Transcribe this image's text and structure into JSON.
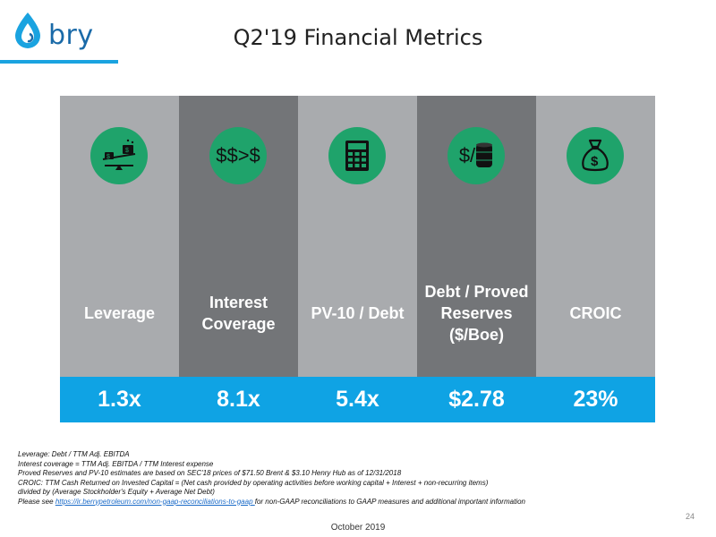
{
  "brand": {
    "name": "bry",
    "accent": "#1aa3e0",
    "logo_color": "#1a6aa8"
  },
  "title": "Q2'19 Financial Metrics",
  "metrics": [
    {
      "label": "Leverage",
      "value": "1.3x",
      "icon": "scale-balance-icon",
      "icon_text": ""
    },
    {
      "label": "Interest Coverage",
      "value": "8.1x",
      "icon": "dollar-comparison-icon",
      "icon_text": "$$>$"
    },
    {
      "label": "PV-10 / Debt",
      "value": "5.4x",
      "icon": "calculator-icon",
      "icon_text": ""
    },
    {
      "label": "Debt / Proved Reserves ($/Boe)",
      "value": "$2.78",
      "icon": "dollar-per-barrel-icon",
      "icon_text": "$/"
    },
    {
      "label": "CROIC",
      "value": "23%",
      "icon": "money-bag-icon",
      "icon_text": ""
    }
  ],
  "colors": {
    "light_col": "#a9abae",
    "dark_col": "#737578",
    "value_bar": "#0fa3e4",
    "icon_circle": "#1fa36b"
  },
  "notes": {
    "leverage": "Leverage:  Debt / TTM Adj. EBITDA",
    "interest": "Interest coverage = TTM Adj. EBITDA / TTM Interest expense",
    "reserves": "Proved Reserves and PV-10 estimates are based on SEC'18 prices of $71.50 Brent & $3.10 Henry Hub as of 12/31/2018",
    "croic_1": "CROIC: TTM Cash Returned on Invested Capital =  (Net cash provided by operating activities before working capital + Interest + non-recurring items)",
    "croic_2": " divided by (Average Stockholder's Equity + Average Net Debt)",
    "see_prefix": "Please see ",
    "see_link": "https://ir.berrypetroleum.com/non-gaap-reconciliations-to-gaap ",
    "see_suffix": "for non-GAAP reconciliations to GAAP measures and additional important information"
  },
  "footer": {
    "date": "October 2019",
    "page": "24"
  }
}
